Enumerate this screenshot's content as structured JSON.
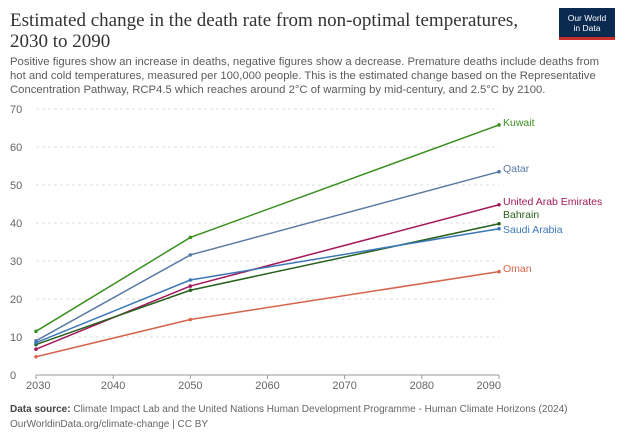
{
  "header": {
    "title": "Estimated change in the death rate from non-optimal temperatures, 2030 to 2090",
    "subtitle": "Positive figures show an increase in deaths, negative figures show a decrease. Premature deaths include deaths from hot and cold temperatures, measured per 100,000 people. This is the estimated change based on the Representative Concentration Pathway, RCP4.5 which reaches around 2°C of warming by mid-century, and 2.5°C by 2100.",
    "logo_line1": "Our World",
    "logo_line2": "in Data"
  },
  "footer": {
    "source_label": "Data source:",
    "source_text": "Climate Impact Lab and the United Nations Human Development Programme - Human Climate Horizons (2024)",
    "url": "OurWorldinData.org/climate-change | CC BY"
  },
  "chart_data": {
    "type": "line",
    "x": [
      2030,
      2050,
      2090
    ],
    "xticks": [
      2030,
      2040,
      2050,
      2060,
      2070,
      2080,
      2090
    ],
    "yticks": [
      0,
      10,
      20,
      30,
      40,
      50,
      60,
      70
    ],
    "xlim": [
      2030,
      2090
    ],
    "ylim": [
      0,
      70
    ],
    "grid": "horizontal dashed",
    "legend": "inline labels at line ends",
    "series": [
      {
        "name": "Kuwait",
        "color": "#3a8f1f",
        "values": [
          11.5,
          36.2,
          65.8
        ]
      },
      {
        "name": "Qatar",
        "color": "#5a7aa6",
        "values": [
          9.0,
          31.6,
          53.5
        ]
      },
      {
        "name": "United Arab Emirates",
        "color": "#a2185b",
        "values": [
          6.8,
          23.4,
          44.8
        ]
      },
      {
        "name": "Bahrain",
        "color": "#28611d",
        "values": [
          8.0,
          22.3,
          39.8
        ]
      },
      {
        "name": "Saudi Arabia",
        "color": "#3c77b8",
        "values": [
          8.5,
          25.0,
          38.5
        ]
      },
      {
        "name": "Oman",
        "color": "#d4644a",
        "values": [
          4.8,
          14.6,
          27.2
        ]
      }
    ]
  }
}
